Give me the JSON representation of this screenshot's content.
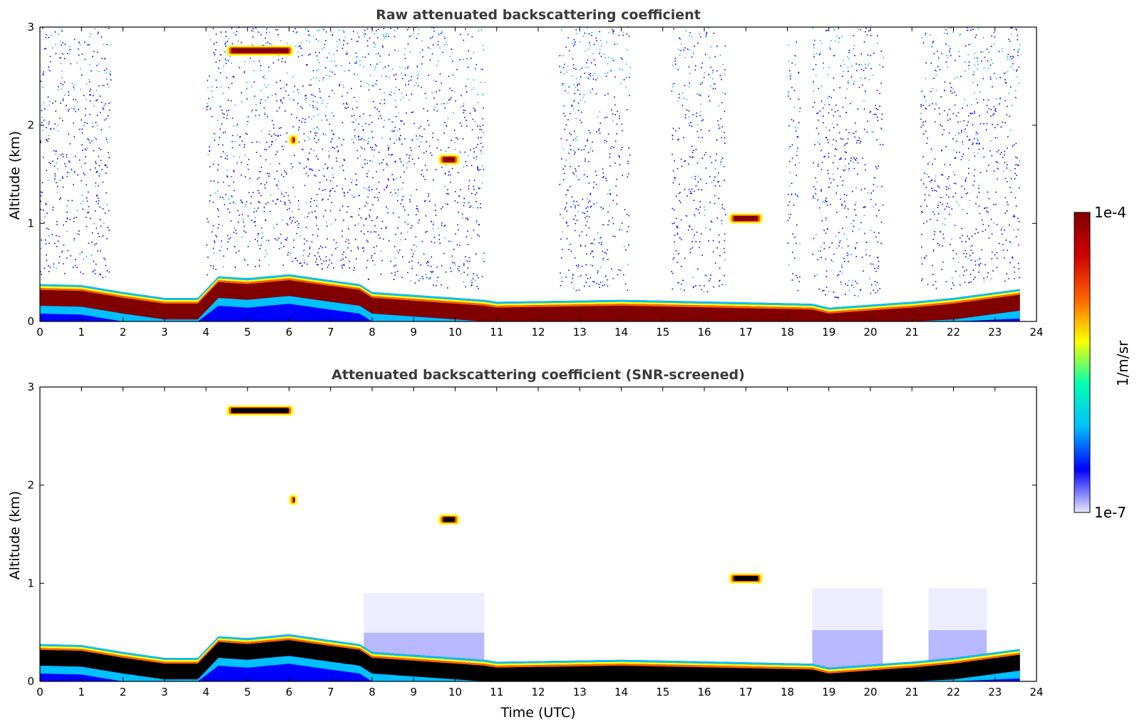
{
  "colors": {
    "jet": [
      "#e8e8ff",
      "#0000ff",
      "#00c0ff",
      "#00ffb0",
      "#ffff00",
      "#ff6000",
      "#d00000",
      "#800000"
    ],
    "screened_high": "#000000",
    "frame": "#000000"
  },
  "chart_data": [
    {
      "type": "heatmap",
      "title": "Raw attenuated backscattering coefficient",
      "xlabel": "",
      "ylabel": "Altitude (km)",
      "xlim": [
        0,
        24
      ],
      "ylim": [
        0,
        3
      ],
      "x_ticks": [
        "0",
        "1",
        "2",
        "3",
        "4",
        "5",
        "6",
        "7",
        "8",
        "9",
        "10",
        "11",
        "12",
        "13",
        "14",
        "15",
        "16",
        "17",
        "18",
        "19",
        "20",
        "21",
        "22",
        "23",
        "24"
      ],
      "y_ticks": [
        "0",
        "1",
        "2",
        "3"
      ],
      "features": {
        "boundary_layer_top": [
          [
            0,
            0.38
          ],
          [
            1,
            0.37
          ],
          [
            2,
            0.3
          ],
          [
            3,
            0.24
          ],
          [
            3.8,
            0.24
          ],
          [
            4.3,
            0.46
          ],
          [
            5,
            0.44
          ],
          [
            6,
            0.48
          ],
          [
            7,
            0.42
          ],
          [
            7.7,
            0.38
          ],
          [
            8,
            0.3
          ],
          [
            10.7,
            0.22
          ],
          [
            11,
            0.2
          ],
          [
            14,
            0.22
          ],
          [
            18.6,
            0.18
          ],
          [
            19,
            0.14
          ],
          [
            20.3,
            0.18
          ],
          [
            21,
            0.2
          ],
          [
            22,
            0.24
          ],
          [
            23.6,
            0.33
          ]
        ],
        "elevated_layers": [
          {
            "x": [
              4.5,
              6.1
            ],
            "y": 2.76
          },
          {
            "x": [
              6.0,
              6.2
            ],
            "y": 1.85
          },
          {
            "x": [
              9.6,
              10.1
            ],
            "y": 1.65
          },
          {
            "x": [
              16.6,
              17.4
            ],
            "y": 1.05
          }
        ],
        "noise_columns": [
          [
            0,
            1.7
          ],
          [
            4,
            7.8
          ],
          [
            7.8,
            10.7
          ],
          [
            12.5,
            14.2
          ],
          [
            15.2,
            16.5
          ],
          [
            18,
            18.3
          ],
          [
            18.6,
            20.3
          ],
          [
            21.2,
            23.6
          ]
        ]
      }
    },
    {
      "type": "heatmap",
      "title": "Attenuated backscattering coefficient (SNR-screened)",
      "xlabel": "Time (UTC)",
      "ylabel": "Altitude (km)",
      "xlim": [
        0,
        24
      ],
      "ylim": [
        0,
        3
      ],
      "x_ticks": [
        "0",
        "1",
        "2",
        "3",
        "4",
        "5",
        "6",
        "7",
        "8",
        "9",
        "10",
        "11",
        "12",
        "13",
        "14",
        "15",
        "16",
        "17",
        "18",
        "19",
        "20",
        "21",
        "22",
        "23",
        "24"
      ],
      "y_ticks": [
        "0",
        "1",
        "2",
        "3"
      ],
      "features": {
        "boundary_layer_top": [
          [
            0,
            0.38
          ],
          [
            1,
            0.37
          ],
          [
            2,
            0.3
          ],
          [
            3,
            0.24
          ],
          [
            3.8,
            0.24
          ],
          [
            4.3,
            0.46
          ],
          [
            5,
            0.44
          ],
          [
            6,
            0.48
          ],
          [
            7,
            0.42
          ],
          [
            7.7,
            0.38
          ],
          [
            8,
            0.3
          ],
          [
            10.7,
            0.22
          ],
          [
            11,
            0.2
          ],
          [
            14,
            0.22
          ],
          [
            18.6,
            0.18
          ],
          [
            19,
            0.14
          ],
          [
            20.3,
            0.18
          ],
          [
            21,
            0.2
          ],
          [
            22,
            0.24
          ],
          [
            23.6,
            0.33
          ]
        ],
        "elevated_layers": [
          {
            "x": [
              4.5,
              6.1
            ],
            "y": 2.76
          },
          {
            "x": [
              6.0,
              6.2
            ],
            "y": 1.85
          },
          {
            "x": [
              9.6,
              10.1
            ],
            "y": 1.65
          },
          {
            "x": [
              16.6,
              17.4
            ],
            "y": 1.05
          }
        ],
        "aerosol_regions": [
          [
            7.8,
            10.7,
            0.9
          ],
          [
            18.6,
            20.3,
            0.95
          ],
          [
            21.4,
            22.8,
            0.95
          ]
        ]
      }
    }
  ],
  "colorbar": {
    "label": "1/m/sr",
    "max_label": "1e-4",
    "min_label": "1e-7",
    "range": [
      "1e-7",
      "1e-4"
    ],
    "scale": "log"
  }
}
